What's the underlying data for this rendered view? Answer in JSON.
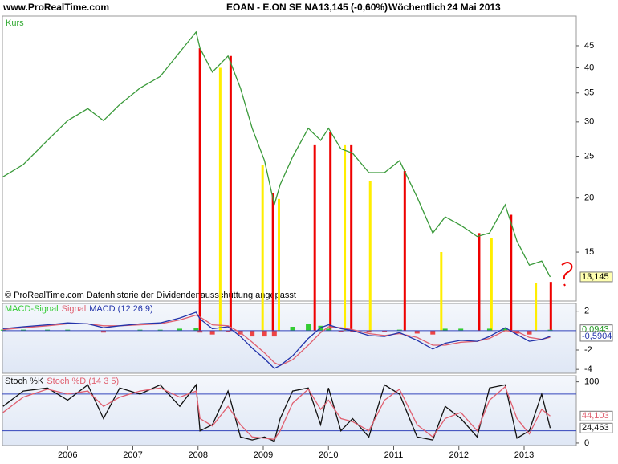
{
  "header": {
    "site": "www.ProRealTime.com",
    "symbol": "EOAN - E.ON SE NA",
    "quote": "13,145 (-0,60%)",
    "period": "Wöchentlich",
    "date": "24 Mai 2013"
  },
  "chart_data": [
    {
      "type": "line",
      "title": "Kurs",
      "note": "© ProRealTime.com Datenhistorie der Dividendenausschüttung angepasst",
      "log": true,
      "x": [
        2005.01,
        2005.32,
        2005.69,
        2006.0,
        2006.31,
        2006.55,
        2006.8,
        2007.11,
        2007.42,
        2007.72,
        2007.97,
        2008.03,
        2008.22,
        2008.46,
        2008.65,
        2008.83,
        2009.02,
        2009.17,
        2009.26,
        2009.45,
        2009.69,
        2009.88,
        2010.0,
        2010.19,
        2010.37,
        2010.62,
        2010.86,
        2011.09,
        2011.36,
        2011.6,
        2011.79,
        2012.03,
        2012.28,
        2012.47,
        2012.71,
        2012.89,
        2013.08,
        2013.27,
        2013.4
      ],
      "series": [
        {
          "color": "#3a9a3a",
          "last_label": "13,145",
          "values": [
            22.4,
            23.9,
            27.2,
            30.2,
            32.2,
            30.2,
            32.9,
            35.9,
            38.2,
            43.5,
            48.4,
            44.4,
            39.1,
            42.6,
            35.9,
            29.0,
            24.4,
            19.3,
            21.5,
            24.9,
            29.0,
            27.2,
            29.0,
            26.0,
            25.4,
            22.9,
            22.9,
            24.4,
            20.1,
            16.6,
            18.1,
            17.3,
            16.3,
            16.6,
            19.3,
            15.9,
            14.0,
            14.3,
            13.145
          ]
        }
      ],
      "markers": [
        {
          "x": 2008.03,
          "value": 44.4,
          "color": "#ee0000"
        },
        {
          "x": 2008.34,
          "value": 40.0,
          "color": "#ffee00"
        },
        {
          "x": 2008.5,
          "value": 42.6,
          "color": "#ee0000"
        },
        {
          "x": 2008.99,
          "value": 23.9,
          "color": "#ffee00"
        },
        {
          "x": 2009.15,
          "value": 20.5,
          "color": "#ee0000"
        },
        {
          "x": 2009.24,
          "value": 19.9,
          "color": "#ffee00"
        },
        {
          "x": 2009.79,
          "value": 26.5,
          "color": "#ee0000"
        },
        {
          "x": 2010.03,
          "value": 28.4,
          "color": "#ee0000"
        },
        {
          "x": 2010.25,
          "value": 26.5,
          "color": "#ffee00"
        },
        {
          "x": 2010.35,
          "value": 26.5,
          "color": "#ee0000"
        },
        {
          "x": 2010.64,
          "value": 21.9,
          "color": "#ffee00"
        },
        {
          "x": 2011.17,
          "value": 23.1,
          "color": "#ee0000"
        },
        {
          "x": 2011.73,
          "value": 15.0,
          "color": "#ffee00"
        },
        {
          "x": 2012.31,
          "value": 16.6,
          "color": "#ee0000"
        },
        {
          "x": 2012.5,
          "value": 16.2,
          "color": "#ffee00"
        },
        {
          "x": 2012.8,
          "value": 18.3,
          "color": "#ee0000"
        },
        {
          "x": 2013.18,
          "value": 12.7,
          "color": "#ffee00"
        },
        {
          "x": 2013.41,
          "value": 12.8,
          "color": "#ee0000"
        }
      ],
      "xlim": [
        2005.0,
        2013.8
      ],
      "ylim": [
        11.56,
        52.7
      ],
      "yticks": [
        15,
        20,
        25,
        30,
        35,
        40,
        45
      ]
    },
    {
      "type": "macd",
      "x": [
        2005.01,
        2005.32,
        2005.69,
        2006.0,
        2006.31,
        2006.55,
        2006.8,
        2007.11,
        2007.42,
        2007.72,
        2007.97,
        2008.03,
        2008.22,
        2008.46,
        2008.65,
        2008.83,
        2009.02,
        2009.17,
        2009.26,
        2009.45,
        2009.69,
        2009.88,
        2010.0,
        2010.19,
        2010.37,
        2010.62,
        2010.86,
        2011.09,
        2011.36,
        2011.6,
        2011.79,
        2012.03,
        2012.28,
        2012.47,
        2012.71,
        2012.89,
        2013.08,
        2013.27,
        2013.4
      ],
      "series": [
        {
          "name": "MACD-Signal",
          "kind": "histogram",
          "color": "#33cc33",
          "negative_color": "#ee4444",
          "last_label": "0,0943",
          "values": [
            0.1,
            0.1,
            0.1,
            0.1,
            0,
            -0.2,
            0,
            0.1,
            0.1,
            0.2,
            0.3,
            -0.2,
            -0.4,
            -0.1,
            -0.4,
            -0.6,
            -0.6,
            -0.6,
            0,
            0.4,
            0.7,
            0.5,
            0.2,
            -0.1,
            -0.1,
            -0.2,
            -0.1,
            0.1,
            -0.3,
            -0.4,
            0.2,
            0.2,
            0,
            0.2,
            0.3,
            -0.3,
            -0.4,
            0,
            0.0943
          ]
        },
        {
          "name": "Signal",
          "kind": "line",
          "color": "#e06070",
          "values": [
            0.1,
            0.3,
            0.5,
            0.7,
            0.7,
            0.5,
            0.5,
            0.6,
            0.7,
            1.1,
            1.6,
            1.4,
            0.6,
            0.5,
            -0.2,
            -1.2,
            -2.3,
            -3.3,
            -3.6,
            -3.0,
            -1.5,
            -0.2,
            0.4,
            0.3,
            0.1,
            -0.3,
            -0.5,
            -0.3,
            -0.7,
            -1.5,
            -1.5,
            -1.2,
            -1.1,
            -0.8,
            0.0,
            -0.1,
            -0.7,
            -0.9,
            -0.68
          ]
        },
        {
          "name": "MACD (12 26 9)",
          "kind": "line",
          "color": "#2233aa",
          "last_label": "-0,5904",
          "values": [
            0.2,
            0.4,
            0.6,
            0.8,
            0.7,
            0.3,
            0.5,
            0.7,
            0.8,
            1.3,
            1.9,
            1.2,
            0.2,
            0.4,
            -0.6,
            -1.8,
            -2.9,
            -3.9,
            -3.6,
            -2.6,
            -0.8,
            0.3,
            0.6,
            0.2,
            0.0,
            -0.5,
            -0.6,
            -0.2,
            -1.0,
            -1.9,
            -1.3,
            -1.0,
            -1.1,
            -0.6,
            0.3,
            -0.4,
            -1.1,
            -0.9,
            -0.5904
          ]
        }
      ],
      "hlines": [
        0
      ],
      "xlim": [
        2005.0,
        2013.8
      ],
      "ylim": [
        -4.4,
        2.8
      ],
      "yticks": [
        -4,
        -2,
        2
      ]
    },
    {
      "type": "stoch",
      "x": [
        2005.01,
        2005.32,
        2005.69,
        2006.0,
        2006.31,
        2006.55,
        2006.8,
        2007.11,
        2007.42,
        2007.72,
        2007.97,
        2008.03,
        2008.22,
        2008.46,
        2008.65,
        2008.83,
        2009.02,
        2009.17,
        2009.26,
        2009.45,
        2009.69,
        2009.88,
        2010.0,
        2010.19,
        2010.37,
        2010.62,
        2010.86,
        2011.09,
        2011.36,
        2011.6,
        2011.79,
        2012.03,
        2012.28,
        2012.47,
        2012.71,
        2012.89,
        2013.08,
        2013.27,
        2013.4
      ],
      "series": [
        {
          "name": "Stoch %K",
          "color": "#111111",
          "last_label": "24,463",
          "values": [
            60,
            85,
            90,
            70,
            95,
            40,
            90,
            80,
            95,
            60,
            95,
            20,
            30,
            85,
            10,
            5,
            10,
            3,
            40,
            85,
            90,
            30,
            90,
            20,
            40,
            10,
            95,
            80,
            10,
            5,
            60,
            40,
            10,
            90,
            95,
            8,
            20,
            80,
            24.463
          ]
        },
        {
          "name": "Stoch %D (14 3 5)",
          "color": "#e06070",
          "last_label": "44,103",
          "values": [
            50,
            75,
            88,
            80,
            85,
            60,
            75,
            85,
            90,
            75,
            85,
            40,
            28,
            60,
            30,
            10,
            8,
            6,
            20,
            65,
            88,
            55,
            70,
            40,
            35,
            20,
            70,
            88,
            30,
            10,
            40,
            50,
            20,
            70,
            92,
            40,
            15,
            55,
            44.103
          ]
        }
      ],
      "hlines": [
        20,
        80
      ],
      "xlim": [
        2005.0,
        2013.8
      ],
      "ylim": [
        -4,
        110
      ],
      "yticks": [
        0,
        100
      ],
      "xticks": [
        2006,
        2007,
        2008,
        2009,
        2010,
        2011,
        2012,
        2013
      ]
    }
  ]
}
